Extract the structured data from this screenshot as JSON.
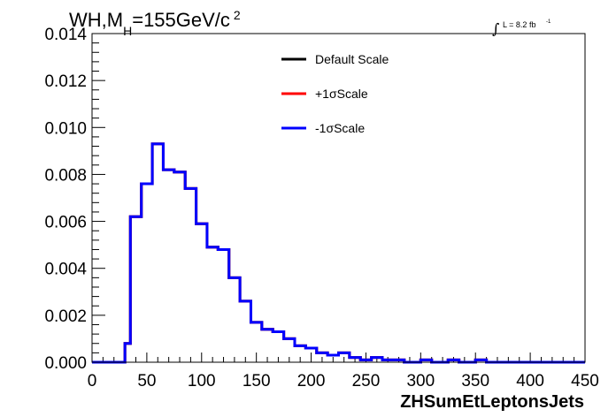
{
  "chart_data": {
    "type": "line",
    "title": {
      "main": "WH,M",
      "subscript": "H",
      "rest": "=155GeV/c",
      "superscript": "2"
    },
    "luminosity": {
      "symbol": "∫",
      "text": "L = 8.2 fb",
      "superscript": "-1"
    },
    "xlabel": "ZHSumEtLeptonsJets",
    "ylabel": "",
    "xlim": [
      0,
      450
    ],
    "ylim": [
      0,
      0.014
    ],
    "x_ticks": [
      "0",
      "50",
      "100",
      "150",
      "200",
      "250",
      "300",
      "350",
      "400",
      "450"
    ],
    "x_tick_values": [
      0,
      50,
      100,
      150,
      200,
      250,
      300,
      350,
      400,
      450
    ],
    "y_ticks": [
      "0.000",
      "0.002",
      "0.004",
      "0.006",
      "0.008",
      "0.010",
      "0.012",
      "0.014"
    ],
    "y_tick_values": [
      0,
      0.002,
      0.004,
      0.006,
      0.008,
      0.01,
      0.012,
      0.014
    ],
    "grid": false,
    "legend_position": "top-center",
    "bin_edges": [
      0,
      5,
      10,
      15,
      20,
      25,
      30,
      35,
      40,
      45,
      50,
      55,
      60,
      65,
      70,
      75,
      80,
      85,
      90,
      95,
      100,
      105,
      110,
      115,
      120,
      125,
      130,
      135,
      140,
      145,
      150,
      155,
      160,
      165,
      170,
      175,
      180,
      185,
      190,
      195,
      200,
      205,
      210,
      215,
      220,
      225,
      230,
      235,
      240,
      245,
      250,
      255,
      260,
      265,
      270,
      275,
      280,
      285,
      290,
      295,
      300,
      305,
      310,
      315,
      320,
      325,
      330,
      335,
      340,
      345,
      350,
      355,
      360,
      365,
      370,
      375,
      380,
      385,
      390,
      395,
      400,
      405,
      410,
      415,
      420,
      425,
      430,
      435,
      440,
      445,
      450
    ],
    "series": [
      {
        "name": "Default Scale",
        "color": "#000000",
        "values": [
          0,
          0,
          0,
          0,
          0,
          0,
          0.0008,
          0.0062,
          0.0062,
          0.0076,
          0.0076,
          0.0093,
          0.0093,
          0.0082,
          0.0082,
          0.0081,
          0.0081,
          0.0074,
          0.0074,
          0.0059,
          0.0059,
          0.0049,
          0.0049,
          0.0048,
          0.0048,
          0.0036,
          0.0036,
          0.0026,
          0.0026,
          0.0017,
          0.0017,
          0.0014,
          0.0014,
          0.0013,
          0.0013,
          0.001,
          0.001,
          0.0007,
          0.0007,
          0.0006,
          0.0006,
          0.0004,
          0.0004,
          0.0003,
          0.0003,
          0.0004,
          0.0004,
          0.0002,
          0.0002,
          0.0001,
          0.0001,
          0.0002,
          0.0002,
          0.0001,
          0.0001,
          0.0001,
          0.0001,
          0.0,
          0.0,
          0.0,
          0.0001,
          0.0001,
          0.0,
          0.0,
          0.0,
          0.0001,
          0.0001,
          0.0,
          0.0,
          0.0,
          0.0001,
          0.0001,
          0.0,
          0.0,
          0.0,
          0.0,
          0.0,
          0.0,
          0.0,
          0.0,
          0.0,
          0.0,
          0.0,
          0.0,
          0.0,
          0.0,
          0.0,
          0.0,
          0.0,
          0.0
        ]
      },
      {
        "name": "+1σScale",
        "color": "#ff0000",
        "values": [
          0,
          0,
          0,
          0,
          0,
          0,
          0.0008,
          0.0062,
          0.0062,
          0.0076,
          0.0076,
          0.0093,
          0.0093,
          0.0082,
          0.0082,
          0.0081,
          0.0081,
          0.0074,
          0.0074,
          0.0059,
          0.0059,
          0.0049,
          0.0049,
          0.0048,
          0.0048,
          0.0036,
          0.0036,
          0.0026,
          0.0026,
          0.0017,
          0.0017,
          0.0014,
          0.0014,
          0.0013,
          0.0013,
          0.001,
          0.001,
          0.0007,
          0.0007,
          0.0006,
          0.0006,
          0.0004,
          0.0004,
          0.0003,
          0.0003,
          0.0004,
          0.0004,
          0.0002,
          0.0002,
          0.0001,
          0.0001,
          0.0002,
          0.0002,
          0.0001,
          0.0001,
          0.0001,
          0.0001,
          0.0,
          0.0,
          0.0,
          0.0001,
          0.0001,
          0.0,
          0.0,
          0.0,
          0.0001,
          0.0001,
          0.0,
          0.0,
          0.0,
          0.0001,
          0.0001,
          0.0,
          0.0,
          0.0,
          0.0,
          0.0,
          0.0,
          0.0,
          0.0,
          0.0,
          0.0,
          0.0,
          0.0,
          0.0,
          0.0,
          0.0,
          0.0,
          0.0,
          0.0
        ]
      },
      {
        "name": "-1σScale",
        "color": "#0000ff",
        "values": [
          0,
          0,
          0,
          0,
          0,
          0,
          0.0008,
          0.0062,
          0.0062,
          0.0076,
          0.0076,
          0.0093,
          0.0093,
          0.0082,
          0.0082,
          0.0081,
          0.0081,
          0.0074,
          0.0074,
          0.0059,
          0.0059,
          0.0049,
          0.0049,
          0.0048,
          0.0048,
          0.0036,
          0.0036,
          0.0026,
          0.0026,
          0.0017,
          0.0017,
          0.0014,
          0.0014,
          0.0013,
          0.0013,
          0.001,
          0.001,
          0.0007,
          0.0007,
          0.0006,
          0.0006,
          0.0004,
          0.0004,
          0.0003,
          0.0003,
          0.0004,
          0.0004,
          0.0002,
          0.0002,
          0.0001,
          0.0001,
          0.0002,
          0.0002,
          0.0001,
          0.0001,
          0.0001,
          0.0001,
          0.0,
          0.0,
          0.0,
          0.0001,
          0.0001,
          0.0,
          0.0,
          0.0,
          0.0001,
          0.0001,
          0.0,
          0.0,
          0.0,
          0.0001,
          0.0001,
          0.0,
          0.0,
          0.0,
          0.0,
          0.0,
          0.0,
          0.0,
          0.0,
          0.0,
          0.0,
          0.0,
          0.0,
          0.0,
          0.0,
          0.0,
          0.0,
          0.0,
          0.0
        ]
      }
    ]
  }
}
